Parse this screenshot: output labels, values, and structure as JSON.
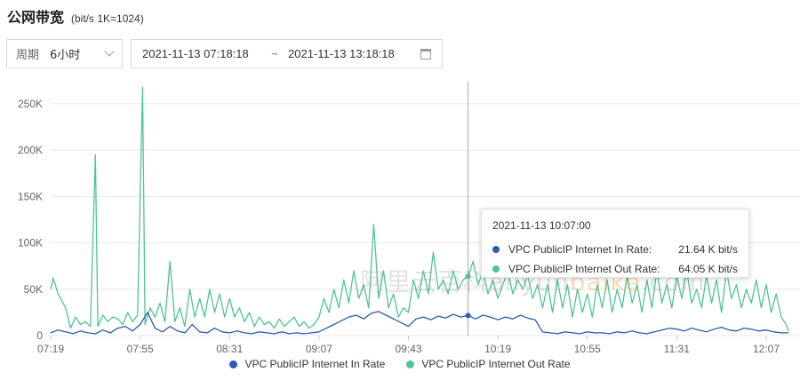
{
  "header": {
    "title": "公网带宽",
    "subtitle": "(bit/s  1K=1024)"
  },
  "period": {
    "label": "周期",
    "value": "6小时"
  },
  "range": {
    "start": "2021-11-13 07:18:18",
    "separator": "~",
    "end": "2021-11-13 13:18:18"
  },
  "tooltip": {
    "time": "2021-11-13 10:07:00",
    "rows": [
      {
        "name": "VPC PublicIP Internet In Rate:",
        "value": "21.64 K bit/s"
      },
      {
        "name": "VPC PublicIP Internet Out Rate:",
        "value": "64.05 K bit/s"
      }
    ]
  },
  "watermark": {
    "cn": "阿里云百科",
    "en_prefix": "aliyun",
    "en_orange": "baike",
    "en_suffix": ".com"
  },
  "colors": {
    "in_rate": "#2a5ab3",
    "out_rate": "#4fc493",
    "grid": "#e8e8e8",
    "crosshair": "#aaaaaa"
  },
  "icons": {
    "period_dropdown": "chevron-down-icon",
    "calendar": "calendar-icon"
  },
  "chart_data": {
    "type": "line",
    "title": "",
    "xlabel": "",
    "ylabel": "",
    "ylim": [
      0,
      270
    ],
    "y_ticks": [
      "0",
      "50K",
      "100K",
      "150K",
      "200K",
      "250K"
    ],
    "x_ticks": [
      "07:19",
      "07:55",
      "08:31",
      "09:07",
      "09:43",
      "10:19",
      "10:55",
      "11:31",
      "12:07"
    ],
    "grid": true,
    "legend_position": "bottom",
    "crosshair_time": "10:07",
    "series": [
      {
        "name": "VPC PublicIP Internet In Rate",
        "unit": "K bit/s",
        "points": [
          [
            "07:19",
            3
          ],
          [
            "07:22",
            6
          ],
          [
            "07:25",
            4
          ],
          [
            "07:28",
            2
          ],
          [
            "07:31",
            5
          ],
          [
            "07:34",
            3
          ],
          [
            "07:37",
            2
          ],
          [
            "07:40",
            6
          ],
          [
            "07:43",
            3
          ],
          [
            "07:46",
            8
          ],
          [
            "07:49",
            10
          ],
          [
            "07:52",
            5
          ],
          [
            "07:55",
            12
          ],
          [
            "07:58",
            25
          ],
          [
            "08:01",
            8
          ],
          [
            "08:04",
            4
          ],
          [
            "08:07",
            10
          ],
          [
            "08:10",
            5
          ],
          [
            "08:13",
            3
          ],
          [
            "08:16",
            12
          ],
          [
            "08:19",
            4
          ],
          [
            "08:22",
            3
          ],
          [
            "08:25",
            8
          ],
          [
            "08:28",
            4
          ],
          [
            "08:31",
            3
          ],
          [
            "08:34",
            5
          ],
          [
            "08:37",
            3
          ],
          [
            "08:40",
            2
          ],
          [
            "08:43",
            4
          ],
          [
            "08:46",
            3
          ],
          [
            "08:49",
            2
          ],
          [
            "08:52",
            4
          ],
          [
            "08:55",
            2
          ],
          [
            "08:58",
            3
          ],
          [
            "09:01",
            2
          ],
          [
            "09:04",
            3
          ],
          [
            "09:07",
            4
          ],
          [
            "09:10",
            8
          ],
          [
            "09:13",
            12
          ],
          [
            "09:16",
            16
          ],
          [
            "09:19",
            20
          ],
          [
            "09:22",
            22
          ],
          [
            "09:25",
            18
          ],
          [
            "09:28",
            24
          ],
          [
            "09:31",
            26
          ],
          [
            "09:34",
            22
          ],
          [
            "09:37",
            18
          ],
          [
            "09:40",
            14
          ],
          [
            "09:43",
            10
          ],
          [
            "09:46",
            18
          ],
          [
            "09:49",
            20
          ],
          [
            "09:52",
            17
          ],
          [
            "09:55",
            21
          ],
          [
            "09:58",
            19
          ],
          [
            "10:01",
            23
          ],
          [
            "10:04",
            20
          ],
          [
            "10:07",
            21.64
          ],
          [
            "10:10",
            18
          ],
          [
            "10:13",
            22
          ],
          [
            "10:16",
            20
          ],
          [
            "10:19",
            17
          ],
          [
            "10:22",
            20
          ],
          [
            "10:25",
            18
          ],
          [
            "10:28",
            22
          ],
          [
            "10:31",
            19
          ],
          [
            "10:34",
            17
          ],
          [
            "10:37",
            4
          ],
          [
            "10:40",
            3
          ],
          [
            "10:43",
            2
          ],
          [
            "10:46",
            4
          ],
          [
            "10:49",
            3
          ],
          [
            "10:52",
            2
          ],
          [
            "10:55",
            4
          ],
          [
            "10:58",
            3
          ],
          [
            "11:01",
            3
          ],
          [
            "11:04",
            2
          ],
          [
            "11:07",
            4
          ],
          [
            "11:10",
            3
          ],
          [
            "11:13",
            5
          ],
          [
            "11:16",
            3
          ],
          [
            "11:19",
            2
          ],
          [
            "11:22",
            4
          ],
          [
            "11:25",
            6
          ],
          [
            "11:28",
            8
          ],
          [
            "11:31",
            7
          ],
          [
            "11:34",
            5
          ],
          [
            "11:37",
            8
          ],
          [
            "11:40",
            6
          ],
          [
            "11:43",
            4
          ],
          [
            "11:46",
            7
          ],
          [
            "11:49",
            9
          ],
          [
            "11:52",
            6
          ],
          [
            "11:55",
            5
          ],
          [
            "11:58",
            8
          ],
          [
            "12:01",
            7
          ],
          [
            "12:04",
            5
          ],
          [
            "12:07",
            6
          ],
          [
            "12:10",
            4
          ],
          [
            "12:13",
            3
          ],
          [
            "12:16",
            3
          ]
        ]
      },
      {
        "name": "VPC PublicIP Internet Out Rate",
        "unit": "K bit/s",
        "points": [
          [
            "07:19",
            50
          ],
          [
            "07:20",
            62
          ],
          [
            "07:22",
            45
          ],
          [
            "07:25",
            30
          ],
          [
            "07:27",
            8
          ],
          [
            "07:29",
            20
          ],
          [
            "07:31",
            12
          ],
          [
            "07:33",
            15
          ],
          [
            "07:35",
            10
          ],
          [
            "07:37",
            195
          ],
          [
            "07:38",
            10
          ],
          [
            "07:40",
            22
          ],
          [
            "07:42",
            15
          ],
          [
            "07:44",
            20
          ],
          [
            "07:46",
            18
          ],
          [
            "07:48",
            12
          ],
          [
            "07:50",
            25
          ],
          [
            "07:52",
            15
          ],
          [
            "07:54",
            22
          ],
          [
            "07:56",
            268
          ],
          [
            "07:57",
            12
          ],
          [
            "07:59",
            30
          ],
          [
            "08:01",
            20
          ],
          [
            "08:03",
            35
          ],
          [
            "08:05",
            15
          ],
          [
            "08:07",
            80
          ],
          [
            "08:09",
            15
          ],
          [
            "08:11",
            30
          ],
          [
            "08:13",
            10
          ],
          [
            "08:15",
            50
          ],
          [
            "08:17",
            20
          ],
          [
            "08:19",
            40
          ],
          [
            "08:21",
            20
          ],
          [
            "08:23",
            50
          ],
          [
            "08:25",
            25
          ],
          [
            "08:27",
            45
          ],
          [
            "08:29",
            20
          ],
          [
            "08:31",
            40
          ],
          [
            "08:33",
            20
          ],
          [
            "08:35",
            30
          ],
          [
            "08:37",
            15
          ],
          [
            "08:39",
            25
          ],
          [
            "08:41",
            10
          ],
          [
            "08:43",
            20
          ],
          [
            "08:45",
            12
          ],
          [
            "08:47",
            15
          ],
          [
            "08:49",
            8
          ],
          [
            "08:51",
            18
          ],
          [
            "08:53",
            10
          ],
          [
            "08:55",
            15
          ],
          [
            "08:57",
            20
          ],
          [
            "08:59",
            10
          ],
          [
            "09:01",
            15
          ],
          [
            "09:03",
            8
          ],
          [
            "09:05",
            12
          ],
          [
            "09:07",
            20
          ],
          [
            "09:09",
            40
          ],
          [
            "09:11",
            25
          ],
          [
            "09:13",
            50
          ],
          [
            "09:15",
            30
          ],
          [
            "09:17",
            60
          ],
          [
            "09:19",
            35
          ],
          [
            "09:21",
            70
          ],
          [
            "09:23",
            40
          ],
          [
            "09:25",
            55
          ],
          [
            "09:27",
            30
          ],
          [
            "09:29",
            120
          ],
          [
            "09:31",
            40
          ],
          [
            "09:33",
            70
          ],
          [
            "09:35",
            30
          ],
          [
            "09:37",
            45
          ],
          [
            "09:39",
            20
          ],
          [
            "09:41",
            30
          ],
          [
            "09:43",
            25
          ],
          [
            "09:45",
            60
          ],
          [
            "09:47",
            40
          ],
          [
            "09:49",
            70
          ],
          [
            "09:51",
            45
          ],
          [
            "09:53",
            90
          ],
          [
            "09:55",
            50
          ],
          [
            "09:57",
            60
          ],
          [
            "09:59",
            45
          ],
          [
            "10:01",
            70
          ],
          [
            "10:03",
            50
          ],
          [
            "10:05",
            60
          ],
          [
            "10:07",
            64.05
          ],
          [
            "10:09",
            80
          ],
          [
            "10:11",
            55
          ],
          [
            "10:13",
            70
          ],
          [
            "10:15",
            45
          ],
          [
            "10:17",
            60
          ],
          [
            "10:19",
            40
          ],
          [
            "10:21",
            55
          ],
          [
            "10:23",
            70
          ],
          [
            "10:25",
            45
          ],
          [
            "10:27",
            60
          ],
          [
            "10:29",
            50
          ],
          [
            "10:31",
            65
          ],
          [
            "10:33",
            40
          ],
          [
            "10:35",
            55
          ],
          [
            "10:37",
            30
          ],
          [
            "10:39",
            55
          ],
          [
            "10:41",
            25
          ],
          [
            "10:43",
            60
          ],
          [
            "10:45",
            30
          ],
          [
            "10:47",
            55
          ],
          [
            "10:49",
            20
          ],
          [
            "10:51",
            50
          ],
          [
            "10:53",
            25
          ],
          [
            "10:55",
            45
          ],
          [
            "10:57",
            20
          ],
          [
            "10:59",
            55
          ],
          [
            "11:01",
            30
          ],
          [
            "11:03",
            60
          ],
          [
            "11:05",
            25
          ],
          [
            "11:07",
            50
          ],
          [
            "11:09",
            30
          ],
          [
            "11:11",
            65
          ],
          [
            "11:13",
            35
          ],
          [
            "11:15",
            55
          ],
          [
            "11:17",
            25
          ],
          [
            "11:19",
            60
          ],
          [
            "11:21",
            30
          ],
          [
            "11:23",
            70
          ],
          [
            "11:25",
            35
          ],
          [
            "11:27",
            55
          ],
          [
            "11:29",
            30
          ],
          [
            "11:31",
            65
          ],
          [
            "11:33",
            40
          ],
          [
            "11:35",
            70
          ],
          [
            "11:37",
            35
          ],
          [
            "11:39",
            50
          ],
          [
            "11:41",
            30
          ],
          [
            "11:43",
            65
          ],
          [
            "11:45",
            35
          ],
          [
            "11:47",
            60
          ],
          [
            "11:49",
            25
          ],
          [
            "11:51",
            70
          ],
          [
            "11:53",
            40
          ],
          [
            "11:55",
            55
          ],
          [
            "11:57",
            30
          ],
          [
            "11:59",
            50
          ],
          [
            "12:01",
            35
          ],
          [
            "12:03",
            60
          ],
          [
            "12:05",
            30
          ],
          [
            "12:07",
            55
          ],
          [
            "12:09",
            25
          ],
          [
            "12:11",
            45
          ],
          [
            "12:13",
            20
          ],
          [
            "12:15",
            12
          ],
          [
            "12:16",
            5
          ]
        ]
      }
    ]
  }
}
